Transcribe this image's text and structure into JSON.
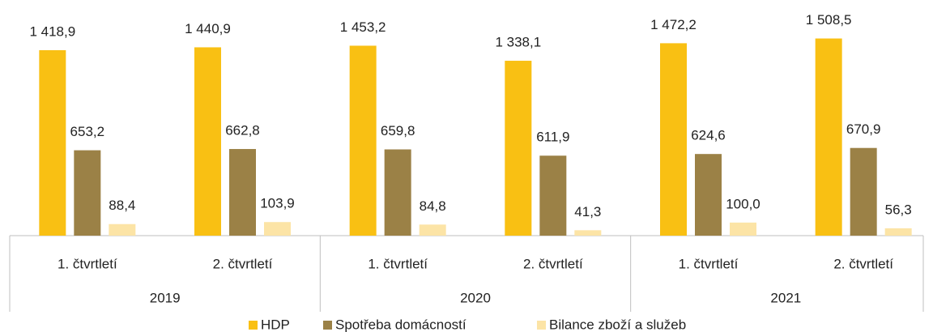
{
  "chart_data": {
    "type": "bar",
    "categories": [
      "1. čtvrtletí",
      "2. čtvrtletí",
      "1. čtvrtletí",
      "2. čtvrtletí",
      "1. čtvrtletí",
      "2. čtvrtletí"
    ],
    "groups": [
      "2019",
      "2020",
      "2021"
    ],
    "series": [
      {
        "name": "HDP",
        "color": "#f9c013",
        "values": [
          1418.9,
          1440.9,
          1453.2,
          1338.1,
          1472.2,
          1508.5
        ],
        "value_labels": [
          "1 418,9",
          "1 440,9",
          "1 453,2",
          "1 338,1",
          "1 472,2",
          "1 508,5"
        ]
      },
      {
        "name": "Spotřeba domácností",
        "color": "#9b8146",
        "values": [
          653.2,
          662.8,
          659.8,
          611.9,
          624.6,
          670.9
        ],
        "value_labels": [
          "653,2",
          "662,8",
          "659,8",
          "611,9",
          "624,6",
          "670,9"
        ]
      },
      {
        "name": "Bilance zboží a služeb",
        "color": "#fce4a6",
        "values": [
          88.4,
          103.9,
          84.8,
          41.3,
          100.0,
          56.3
        ],
        "value_labels": [
          "88,4",
          "103,9",
          "84,8",
          "41,3",
          "100,0",
          "56,3"
        ]
      }
    ],
    "legend": "bottom"
  }
}
